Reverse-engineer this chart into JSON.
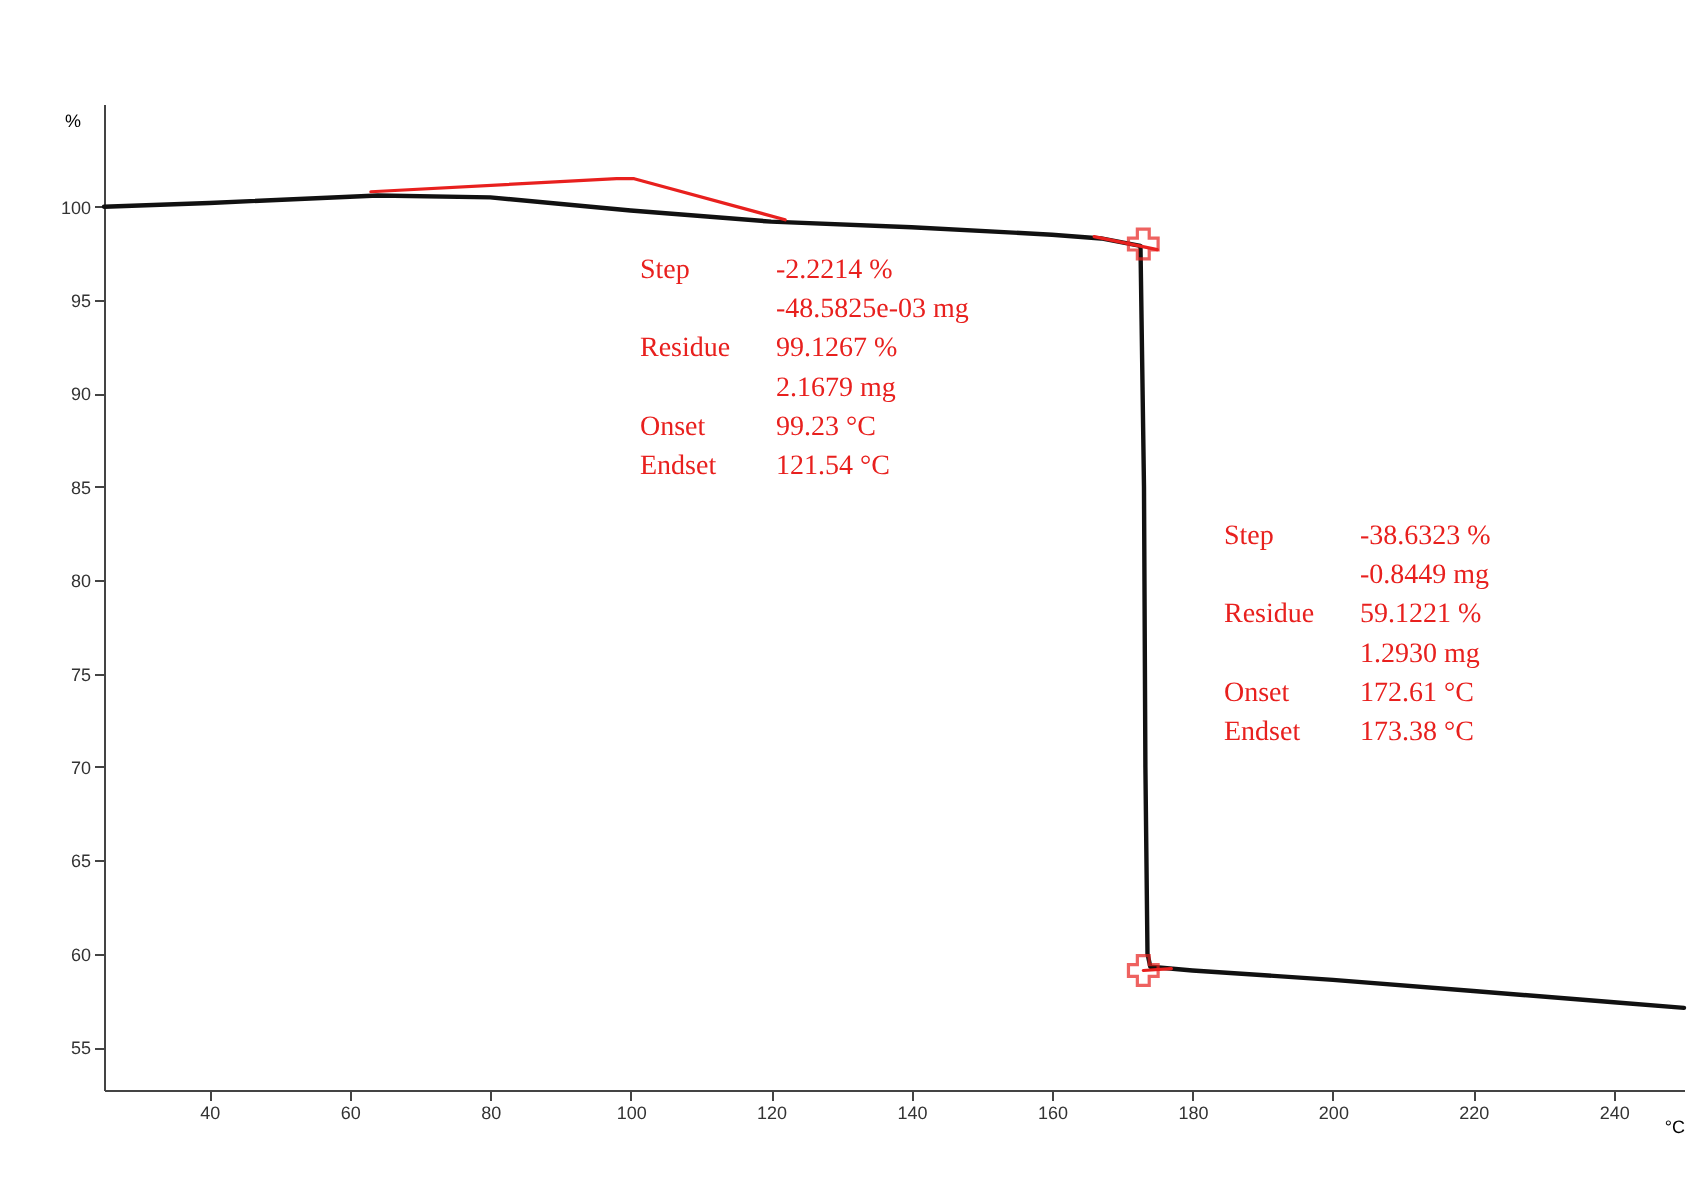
{
  "chart_data": {
    "type": "line",
    "xlabel": "°C",
    "ylabel": "%",
    "xlim": [
      25,
      250
    ],
    "ylim": [
      52.7,
      105.5
    ],
    "xticks": [
      40,
      60,
      80,
      100,
      120,
      140,
      160,
      180,
      200,
      220,
      240
    ],
    "yticks": [
      55,
      60,
      65,
      70,
      75,
      80,
      85,
      90,
      95,
      100
    ],
    "grid": false,
    "marker": "none",
    "series": [
      {
        "color": "#111111",
        "x": [
          25,
          40,
          64,
          80,
          100,
          120,
          140,
          160,
          167,
          172.6,
          173.1,
          173.3,
          173.6,
          174,
          180,
          200,
          220,
          240,
          250
        ],
        "values": [
          100.0,
          100.2,
          100.6,
          100.5,
          99.8,
          99.2,
          98.9,
          98.5,
          98.3,
          97.9,
          85,
          70,
          60,
          59.3,
          59.1,
          58.6,
          58.0,
          57.4,
          57.1
        ]
      },
      {
        "color": "#e8201e",
        "x": [
          63,
          98,
          100.5,
          122
        ],
        "values": [
          100.8,
          101.5,
          101.5,
          99.3
        ]
      },
      {
        "color": "#e8201e",
        "x": [
          166,
          175
        ],
        "values": [
          98.4,
          97.7
        ]
      },
      {
        "color": "#e8201e",
        "x": [
          173,
          177
        ],
        "values": [
          59.1,
          59.2
        ]
      },
      {
        "type": "scatter",
        "color": "#e8201e",
        "marker": "cross",
        "x": [
          173,
          173
        ],
        "values": [
          98.0,
          59.1
        ]
      }
    ],
    "annotations": [
      "Step\t-2.2214 %\n\t-48.5825e-03 mg\nResidue\t99.1267 %\n\t2.1679 mg\nOnset\t99.23 °C\nEndset\t121.54 °C",
      "Step\t-38.6323 %\n\t-0.8449 mg\nResidue\t59.1221 %\n\t1.2930 mg\nOnset\t172.61 °C\nEndset\t173.38 °C"
    ]
  }
}
